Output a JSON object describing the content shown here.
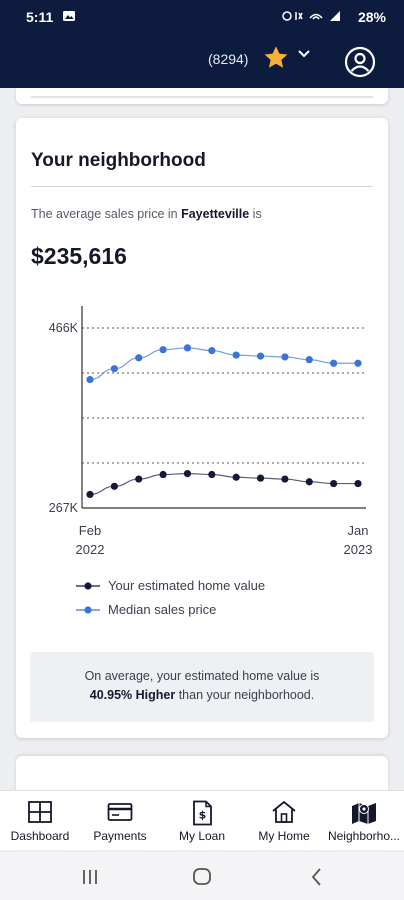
{
  "status_bar": {
    "time": "5:11",
    "battery": "28%"
  },
  "header": {
    "points": "(8294)"
  },
  "neighborhood": {
    "title": "Your neighborhood",
    "avg_prefix": "The average sales price in ",
    "city": "Fayetteville",
    "avg_suffix": " is",
    "avg_price": "$235,616",
    "info_line1": "On average, your estimated home value is",
    "info_highlight": "40.95% Higher",
    "info_line2": " than your neighborhood."
  },
  "chart_data": {
    "type": "line",
    "x": [
      "2022-02",
      "2022-03",
      "2022-04",
      "2022-05",
      "2022-06",
      "2022-07",
      "2022-08",
      "2022-09",
      "2022-10",
      "2022-11",
      "2022-12",
      "2023-01"
    ],
    "x_tick_labels": [
      {
        "line1": "Feb",
        "line2": "2022"
      },
      {
        "line1": "Jan",
        "line2": "2023"
      }
    ],
    "ylim": [
      267000,
      466000
    ],
    "y_tick_labels": [
      "466K",
      "267K"
    ],
    "series": [
      {
        "name": "Your estimated home value",
        "color": "#14193a",
        "values": [
          282000,
          291000,
          299000,
          304000,
          305000,
          304000,
          301000,
          300000,
          299000,
          296000,
          294000,
          294000
        ]
      },
      {
        "name": "Median sales price",
        "color": "#3b73d6",
        "values": [
          409000,
          421000,
          433000,
          442000,
          444000,
          441000,
          436000,
          435000,
          434000,
          431000,
          427000,
          427000
        ]
      }
    ],
    "grid": "horizontal-dotted"
  },
  "bottom_nav": [
    {
      "label": "Dashboard",
      "icon": "dashboard-icon"
    },
    {
      "label": "Payments",
      "icon": "payments-icon"
    },
    {
      "label": "My Loan",
      "icon": "my-loan-icon"
    },
    {
      "label": "My Home",
      "icon": "my-home-icon"
    },
    {
      "label": "Neighborho...",
      "icon": "neighborhood-icon"
    }
  ],
  "colors": {
    "navy": "#0d1b3e",
    "accent_blue": "#3b73d6",
    "star": "#f5b335"
  }
}
